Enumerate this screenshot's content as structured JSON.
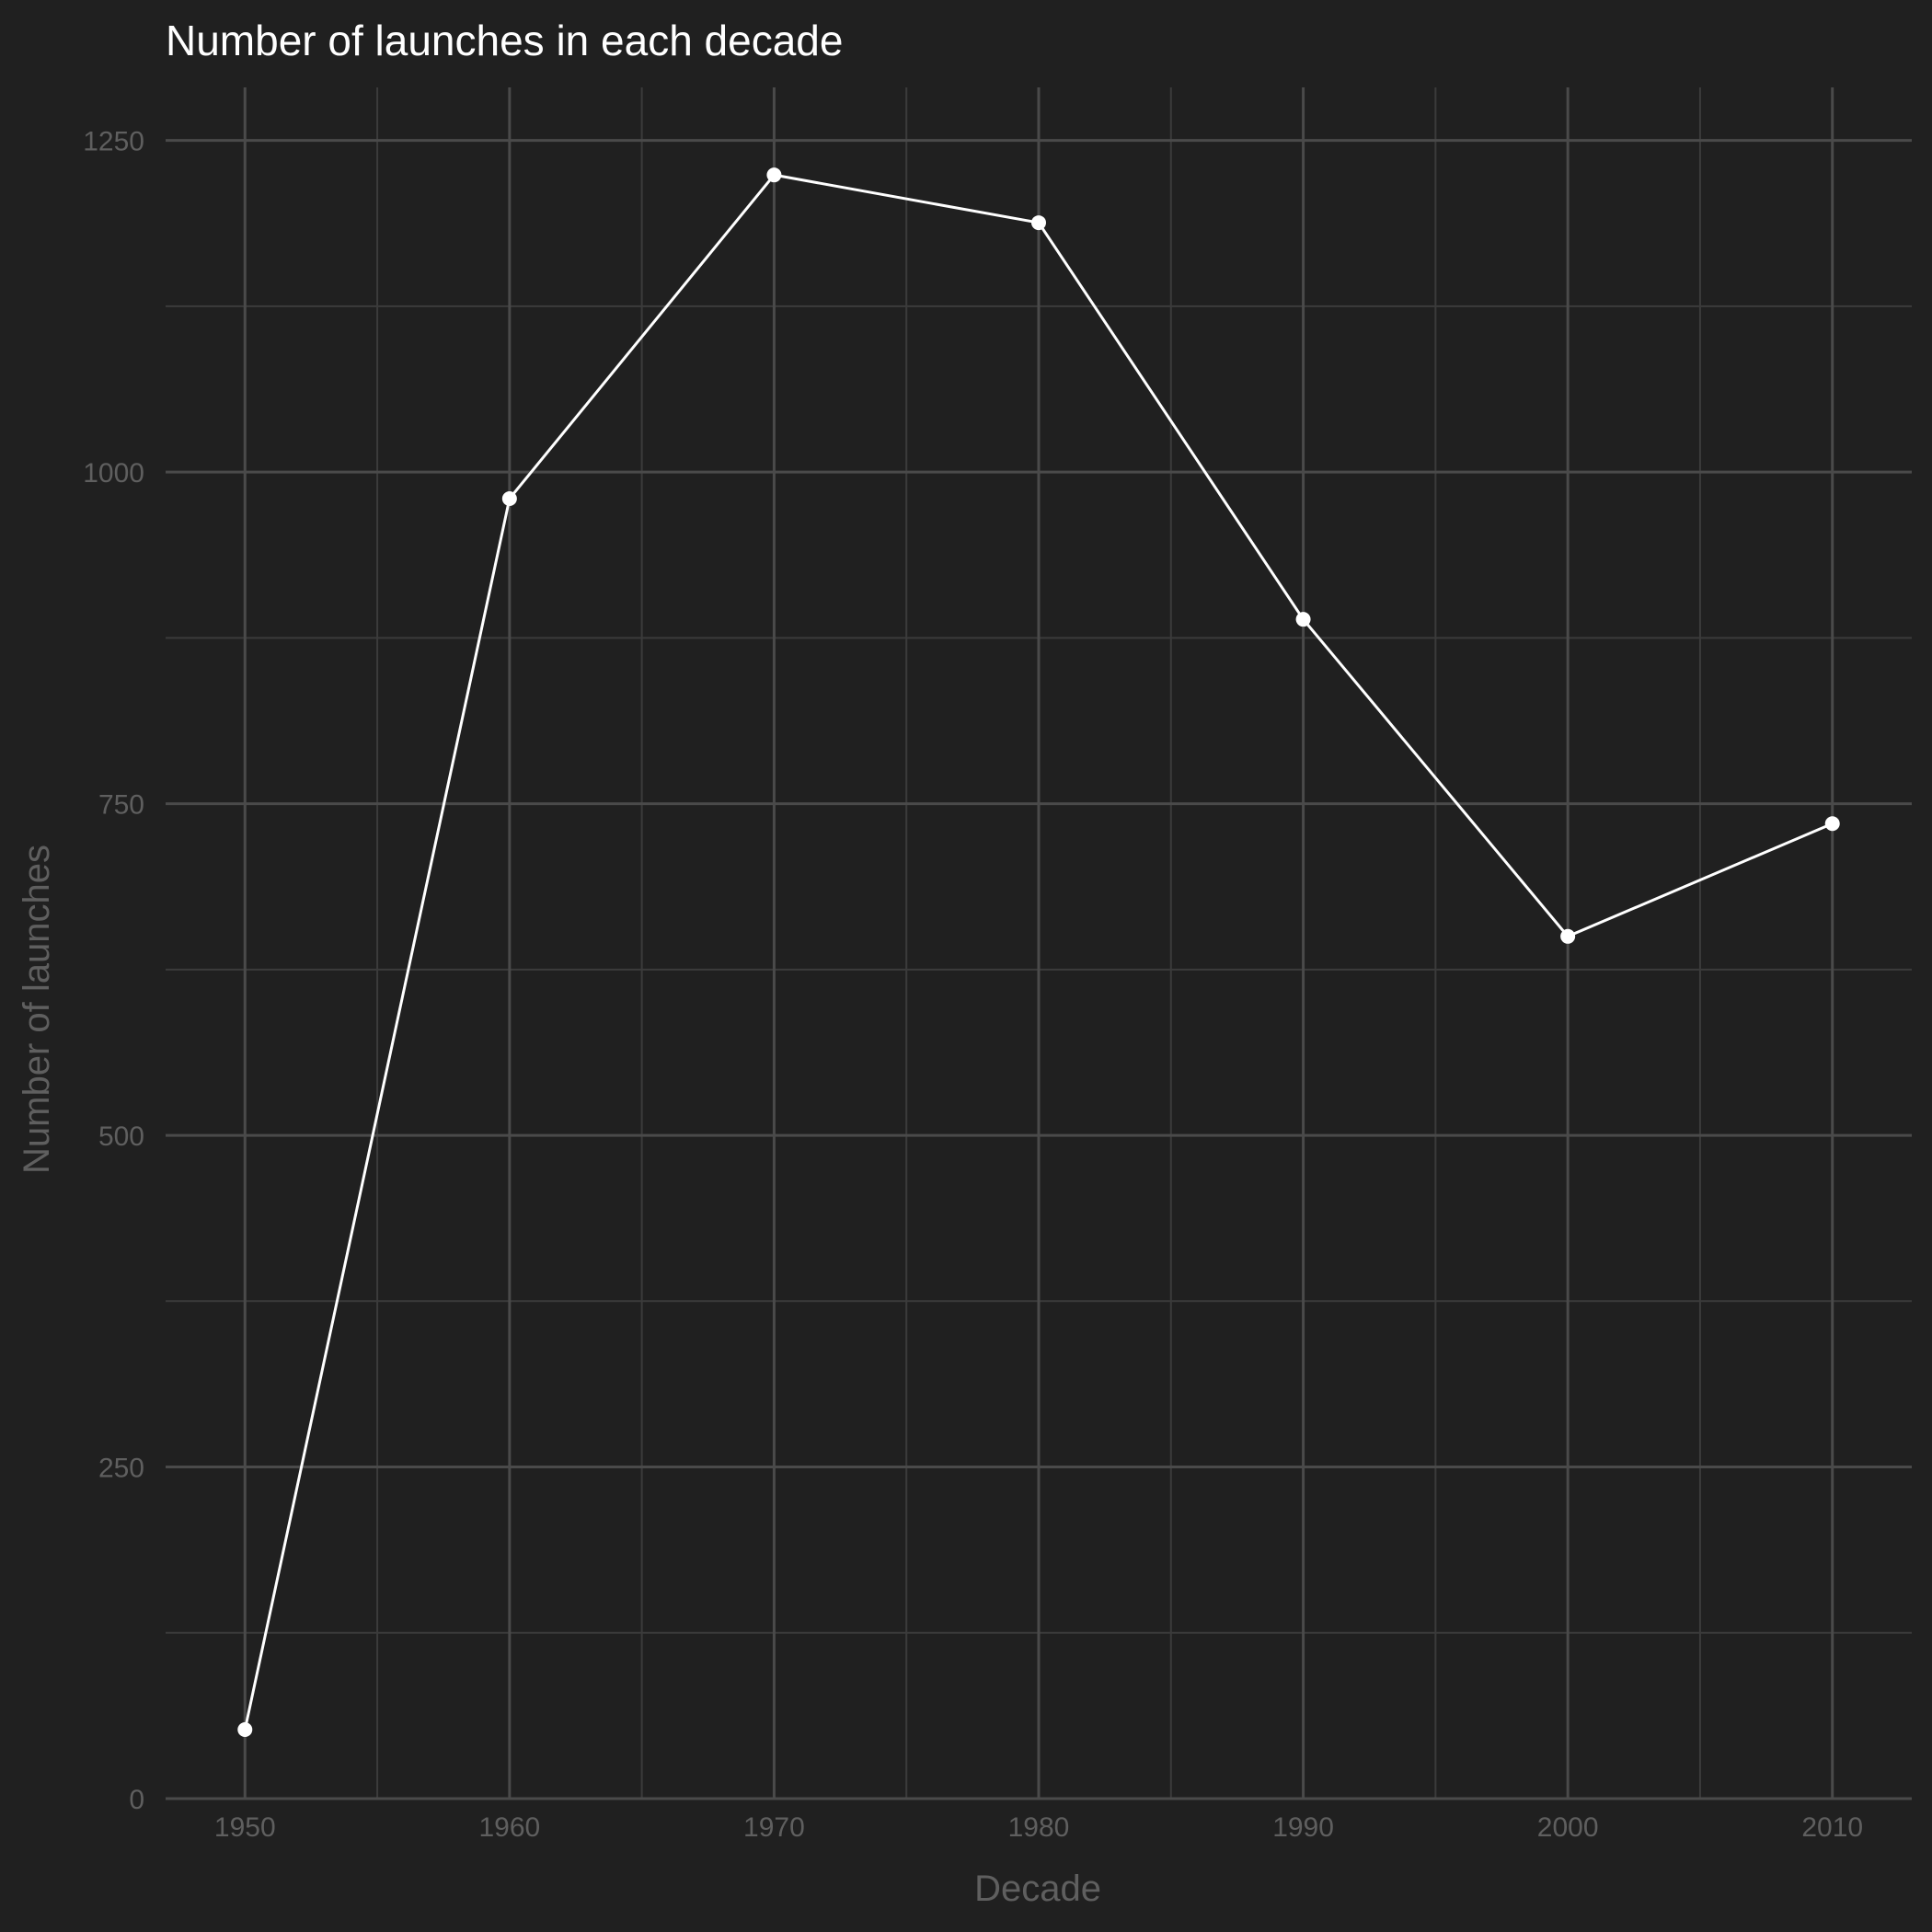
{
  "chart_data": {
    "type": "line",
    "title": "Number of launches in each decade",
    "xlabel": "Decade",
    "ylabel": "Number of launches",
    "x": [
      1950,
      1960,
      1970,
      1980,
      1990,
      2000,
      2010
    ],
    "series": [
      {
        "values": [
          52,
          980,
          1224,
          1188,
          889,
          650,
          735
        ]
      }
    ],
    "xlim": [
      1947,
      2013
    ],
    "ylim": [
      0,
      1290
    ],
    "xticks": [
      1950,
      1960,
      1970,
      1980,
      1990,
      2000,
      2010
    ],
    "yticks": [
      0,
      250,
      500,
      750,
      1000,
      1250
    ],
    "grid": true,
    "legend": "none",
    "colors": {
      "background": "#202020",
      "grid_major": "#4a4a4a",
      "grid_minor": "#3b3b3b",
      "line": "#ffffff",
      "text": "#5f5f5f",
      "title": "#ffffff"
    }
  }
}
